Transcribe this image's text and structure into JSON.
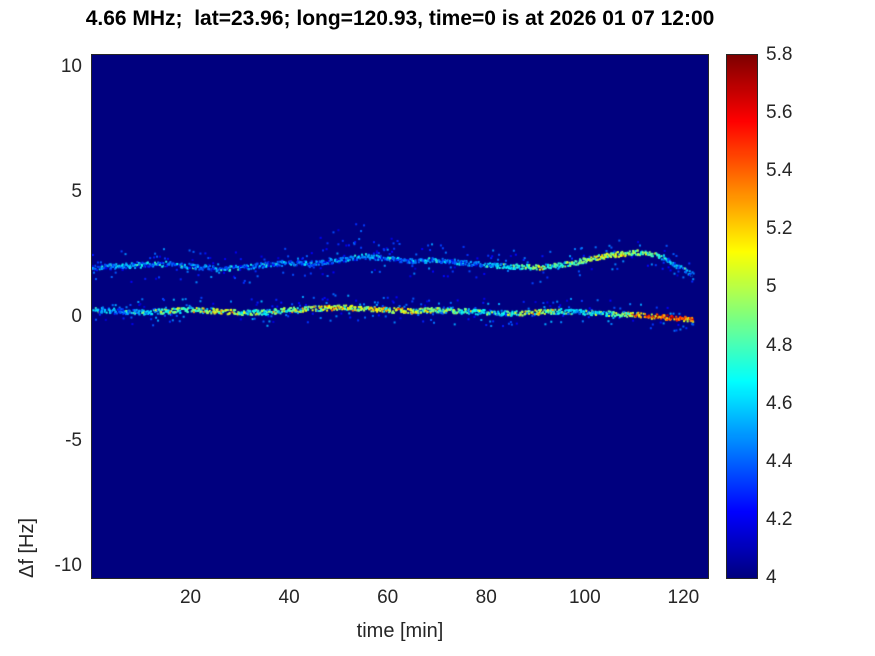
{
  "figure": {
    "background": "#ffffff",
    "text_color": "#262626",
    "title_color": "#000000"
  },
  "chart_data": {
    "type": "heatmap",
    "title": "4.66 MHz;  lat=23.96; long=120.93, time=0 is at 2026 01 07 12:00",
    "xlabel": "time [min]",
    "ylabel": "Δf [Hz]",
    "xlim": [
      0,
      125
    ],
    "ylim": [
      -10.5,
      10.5
    ],
    "xticks": [
      20,
      40,
      60,
      80,
      100,
      120
    ],
    "yticks": [
      10,
      5,
      0,
      -5,
      -10
    ],
    "grid": false,
    "legend": "none",
    "background_value": 4,
    "colorbar": {
      "position": "right",
      "colormap": "jet",
      "min": 4,
      "max": 5.8,
      "tick_values": [
        5.8,
        5.6,
        5.4,
        5.2,
        5,
        4.8,
        4.6,
        4.4,
        4.2,
        4
      ],
      "tick_labels": [
        "5.8",
        "5.6",
        "5.4",
        "5.2",
        "5",
        "4.8",
        "4.6",
        "4.4",
        "4.2",
        "4"
      ]
    },
    "series": [
      {
        "name": "upper-doppler-trace",
        "x": [
          0,
          5,
          10,
          15,
          20,
          25,
          30,
          35,
          40,
          45,
          50,
          55,
          60,
          65,
          70,
          75,
          80,
          85,
          90,
          95,
          100,
          105,
          110,
          113,
          116,
          119,
          122
        ],
        "y": [
          2.0,
          2.05,
          2.1,
          2.15,
          2.05,
          1.95,
          2.0,
          2.1,
          2.2,
          2.15,
          2.3,
          2.45,
          2.35,
          2.25,
          2.3,
          2.2,
          2.1,
          2.05,
          2.0,
          2.1,
          2.3,
          2.5,
          2.6,
          2.55,
          2.4,
          2.0,
          1.7
        ],
        "v": [
          4.4,
          4.45,
          4.5,
          4.4,
          4.45,
          4.4,
          4.45,
          4.4,
          4.45,
          4.4,
          4.45,
          4.5,
          4.45,
          4.4,
          4.45,
          4.4,
          4.5,
          4.7,
          4.85,
          4.7,
          4.9,
          5.05,
          5.0,
          4.85,
          4.6,
          4.45,
          4.4
        ],
        "style": {
          "core_fill": 0.85,
          "core_pts": 2,
          "core_spread": 0.1,
          "halo_fill": 0.3,
          "halo_spread": 0.55,
          "halo_v": [
            4.15,
            4.5
          ],
          "v_noise": 0.45
        }
      },
      {
        "name": "lower-doppler-trace",
        "x": [
          0,
          5,
          10,
          15,
          20,
          25,
          30,
          35,
          40,
          45,
          50,
          55,
          60,
          65,
          70,
          75,
          80,
          85,
          90,
          95,
          100,
          105,
          110,
          113,
          116,
          119,
          122
        ],
        "y": [
          0.3,
          0.25,
          0.2,
          0.25,
          0.3,
          0.25,
          0.2,
          0.2,
          0.3,
          0.35,
          0.4,
          0.35,
          0.3,
          0.25,
          0.3,
          0.25,
          0.2,
          0.15,
          0.2,
          0.25,
          0.2,
          0.15,
          0.1,
          0.05,
          0.0,
          -0.05,
          -0.1
        ],
        "v": [
          4.6,
          4.5,
          4.55,
          4.7,
          4.85,
          5.0,
          4.9,
          4.7,
          4.85,
          5.0,
          5.05,
          5.0,
          5.1,
          5.0,
          4.9,
          4.75,
          4.6,
          4.8,
          4.95,
          4.7,
          4.6,
          4.7,
          5.15,
          5.35,
          5.45,
          5.4,
          5.3
        ],
        "style": {
          "core_fill": 0.9,
          "core_pts": 2,
          "core_spread": 0.1,
          "halo_fill": 0.35,
          "halo_spread": 0.45,
          "halo_v": [
            4.15,
            4.55
          ],
          "v_noise": 0.6
        }
      },
      {
        "name": "faint-upper-spur",
        "x": [
          46,
          50,
          53,
          56,
          59,
          63
        ],
        "y": [
          2.7,
          2.95,
          3.2,
          3.05,
          2.85,
          2.7
        ],
        "v": [
          4.3,
          4.3,
          4.3,
          4.3,
          4.3,
          4.3
        ],
        "style": {
          "core_fill": 0.18,
          "core_pts": 1,
          "core_spread": 0.25,
          "halo_fill": 0.08,
          "halo_spread": 0.5,
          "halo_v": [
            4.15,
            4.4
          ],
          "v_noise": 0.2
        }
      }
    ]
  }
}
